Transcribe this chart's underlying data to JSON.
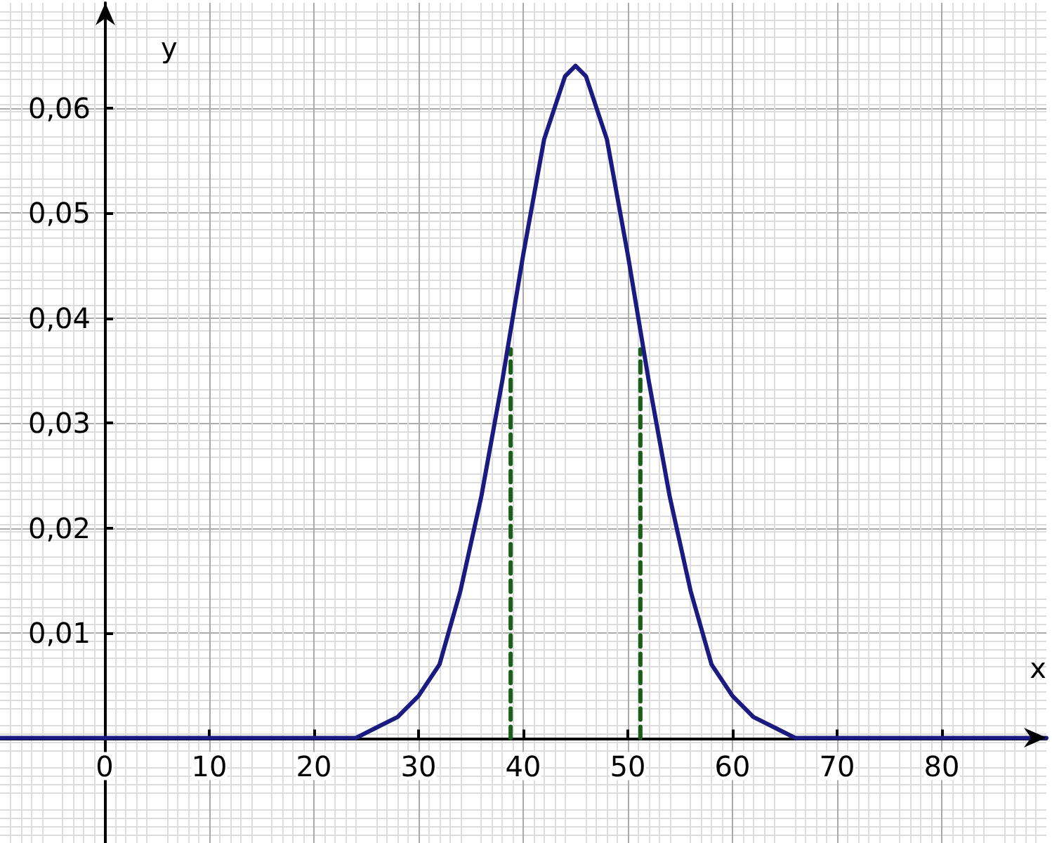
{
  "chart_data": {
    "type": "line",
    "xlabel": "x",
    "ylabel": "y",
    "xlim": [
      -10,
      90
    ],
    "ylim": [
      -0.01,
      0.07
    ],
    "xticks": [
      0,
      10,
      20,
      30,
      40,
      50,
      60,
      70,
      80
    ],
    "yticks": [
      {
        "value": 0.01,
        "label": "0,01"
      },
      {
        "value": 0.02,
        "label": "0,02"
      },
      {
        "value": 0.03,
        "label": "0,03"
      },
      {
        "value": 0.04,
        "label": "0,04"
      },
      {
        "value": 0.05,
        "label": "0,05"
      },
      {
        "value": 0.06,
        "label": "0,06"
      }
    ],
    "grid": true,
    "marker": "none",
    "series": [
      {
        "color": "#1a1a80",
        "line_style": "solid",
        "x": [
          -10,
          20,
          22,
          24,
          26,
          28,
          30,
          32,
          34,
          36,
          38,
          40,
          42,
          44,
          45,
          46,
          48,
          50,
          52,
          54,
          56,
          58,
          60,
          62,
          64,
          66,
          68,
          70,
          90
        ],
        "values": [
          0,
          0,
          0,
          0,
          0.001,
          0.002,
          0.004,
          0.007,
          0.014,
          0.023,
          0.034,
          0.046,
          0.057,
          0.063,
          0.064,
          0.063,
          0.057,
          0.046,
          0.034,
          0.023,
          0.014,
          0.007,
          0.004,
          0.002,
          0.001,
          0,
          0,
          0,
          0
        ]
      },
      {
        "color": "#1a5e1a",
        "line_style": "dashed",
        "x": [
          38.8,
          38.8
        ],
        "values": [
          0,
          0.037
        ]
      },
      {
        "color": "#1a5e1a",
        "line_style": "dashed",
        "x": [
          51.2,
          51.2
        ],
        "values": [
          0,
          0.037
        ]
      }
    ]
  }
}
